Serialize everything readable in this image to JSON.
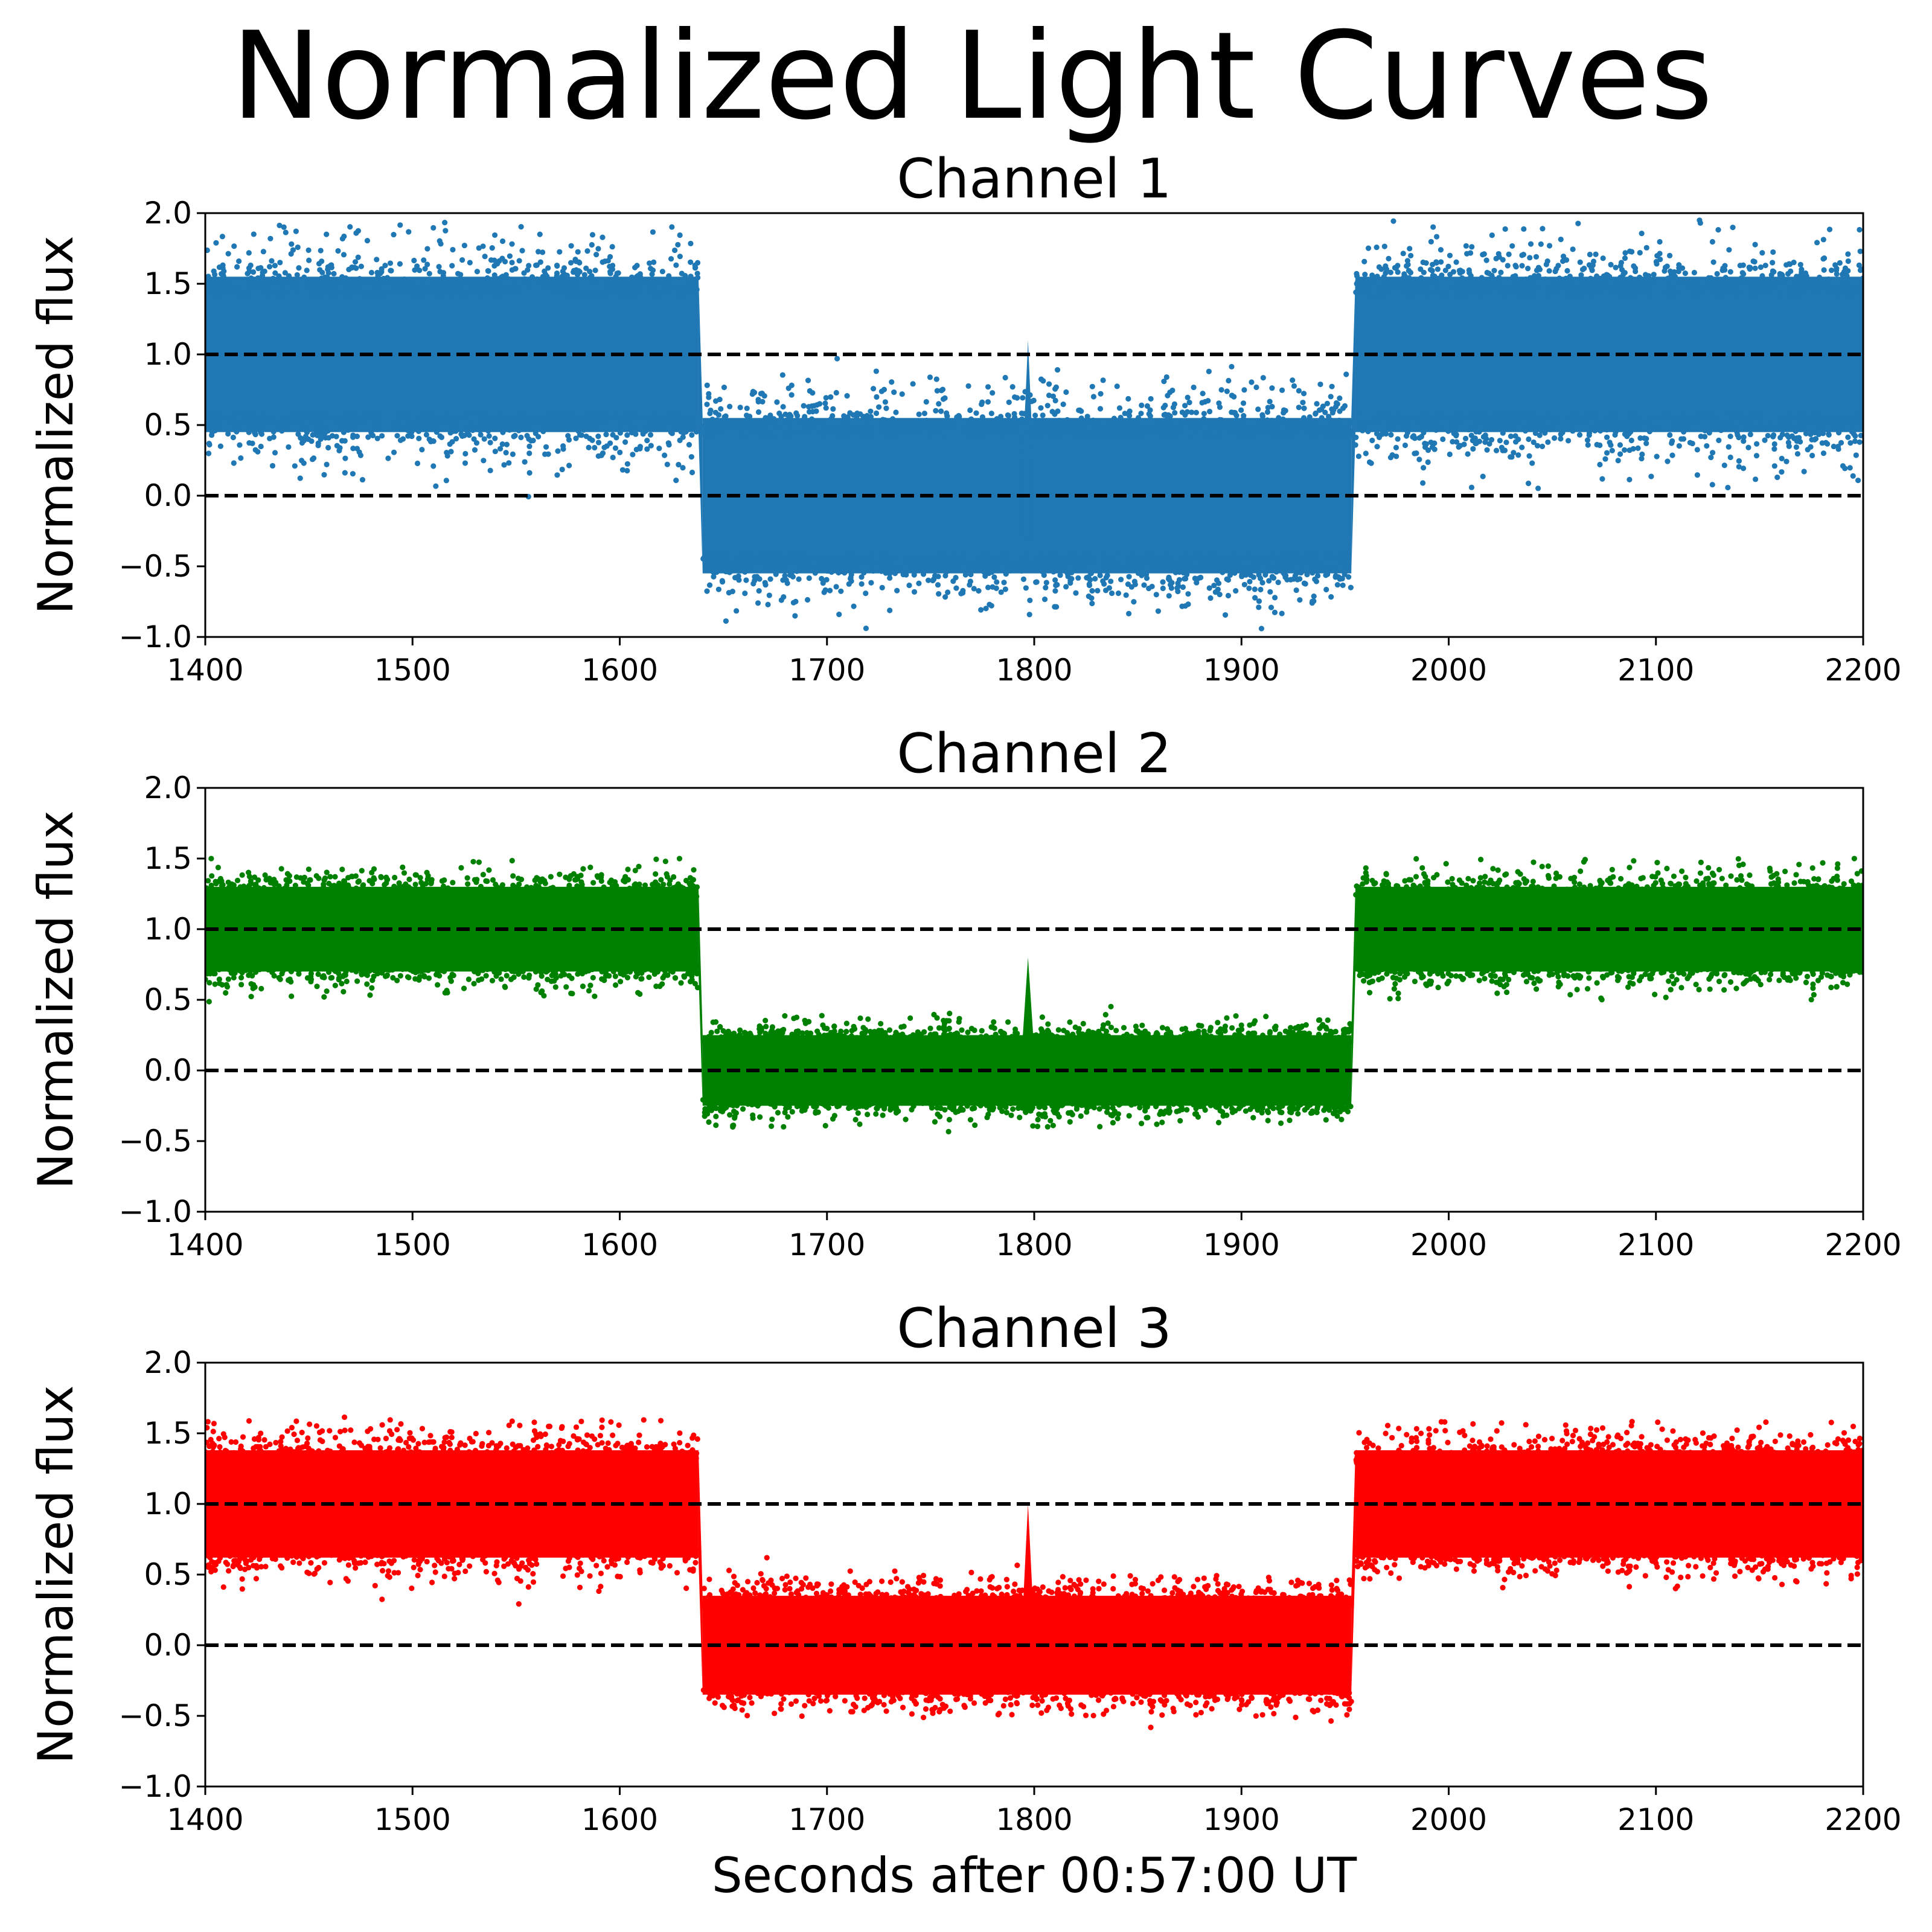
{
  "figure": {
    "title": "Normalized Light Curves"
  },
  "chart_data": [
    {
      "type": "scatter",
      "title": "Channel 1",
      "ylabel": "Normalized flux",
      "xlabel": "",
      "xlim": [
        1400,
        2200
      ],
      "ylim": [
        -1.0,
        2.0
      ],
      "xticks": [
        "1400",
        "1500",
        "1600",
        "1700",
        "1800",
        "1900",
        "2000",
        "2100",
        "2200"
      ],
      "yticks": [
        "−1.0",
        "−0.5",
        "0.0",
        "0.5",
        "1.0",
        "1.5",
        "2.0"
      ],
      "color": "#1f77b4",
      "reference_lines": [
        1.0,
        0.0
      ],
      "segments": [
        {
          "x_start": 1400,
          "x_end": 1638,
          "mean": 1.0,
          "half_width": 0.55,
          "outlier_spread": 0.95
        },
        {
          "x_start": 1640,
          "x_end": 1953,
          "mean": 0.0,
          "half_width": 0.55,
          "outlier_spread": 0.85
        },
        {
          "x_start": 1955,
          "x_end": 2200,
          "mean": 1.0,
          "half_width": 0.55,
          "outlier_spread": 0.95
        }
      ],
      "spike": {
        "x": 1797,
        "peak": 1.1
      }
    },
    {
      "type": "scatter",
      "title": "Channel 2",
      "ylabel": "Normalized flux",
      "xlabel": "",
      "xlim": [
        1400,
        2200
      ],
      "ylim": [
        -1.0,
        2.0
      ],
      "xticks": [
        "1400",
        "1500",
        "1600",
        "1700",
        "1800",
        "1900",
        "2000",
        "2100",
        "2200"
      ],
      "yticks": [
        "−1.0",
        "−0.5",
        "0.0",
        "0.5",
        "1.0",
        "1.5",
        "2.0"
      ],
      "color": "#008000",
      "reference_lines": [
        1.0,
        0.0
      ],
      "segments": [
        {
          "x_start": 1400,
          "x_end": 1638,
          "mean": 1.0,
          "half_width": 0.3,
          "outlier_spread": 0.5
        },
        {
          "x_start": 1640,
          "x_end": 1953,
          "mean": 0.0,
          "half_width": 0.25,
          "outlier_spread": 0.4
        },
        {
          "x_start": 1955,
          "x_end": 2200,
          "mean": 1.0,
          "half_width": 0.3,
          "outlier_spread": 0.5
        }
      ],
      "spike": {
        "x": 1797,
        "peak": 0.8
      }
    },
    {
      "type": "scatter",
      "title": "Channel 3",
      "ylabel": "Normalized flux",
      "xlabel": "Seconds after 00:57:00 UT",
      "xlim": [
        1400,
        2200
      ],
      "ylim": [
        -1.0,
        2.0
      ],
      "xticks": [
        "1400",
        "1500",
        "1600",
        "1700",
        "1800",
        "1900",
        "2000",
        "2100",
        "2200"
      ],
      "yticks": [
        "−1.0",
        "−0.5",
        "0.0",
        "0.5",
        "1.0",
        "1.5",
        "2.0"
      ],
      "color": "#ff0000",
      "reference_lines": [
        1.0,
        0.0
      ],
      "segments": [
        {
          "x_start": 1400,
          "x_end": 1638,
          "mean": 1.0,
          "half_width": 0.38,
          "outlier_spread": 0.6
        },
        {
          "x_start": 1640,
          "x_end": 1953,
          "mean": 0.0,
          "half_width": 0.35,
          "outlier_spread": 0.5
        },
        {
          "x_start": 1955,
          "x_end": 2200,
          "mean": 1.0,
          "half_width": 0.38,
          "outlier_spread": 0.6
        }
      ],
      "spike": {
        "x": 1797,
        "peak": 1.0
      }
    }
  ]
}
